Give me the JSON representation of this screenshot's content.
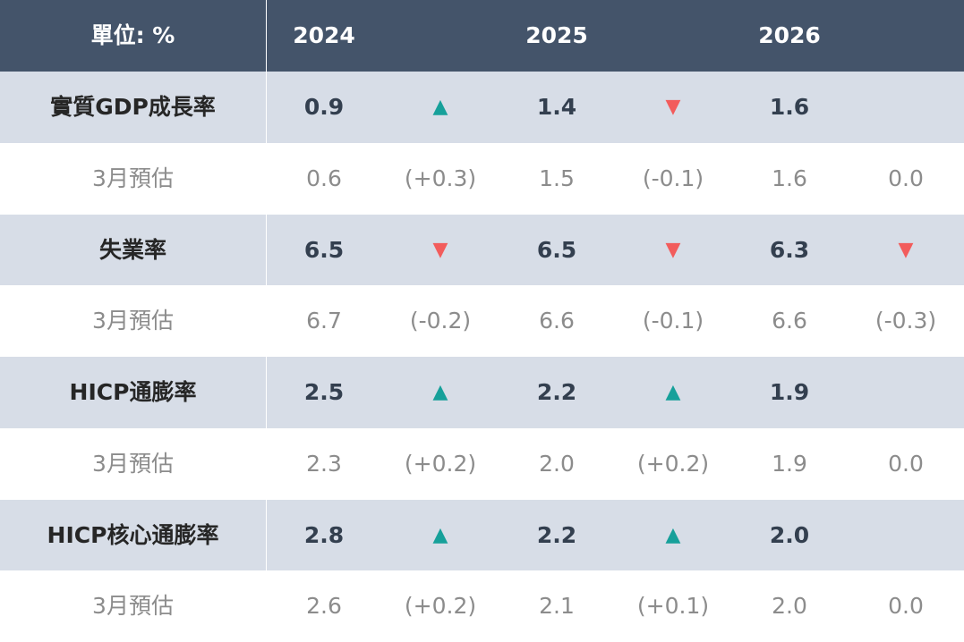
{
  "table": {
    "header": [
      "單位: %",
      "2024",
      null,
      "2025",
      null,
      "2026",
      null
    ],
    "arrow_colors": {
      "▲": "#16a09a",
      "▼": "#f25c5c"
    },
    "rows": [
      {
        "kind": "main",
        "cells": [
          "實質GDP成長率",
          "0.9",
          "▲",
          "1.4",
          "▼",
          "1.6",
          null
        ]
      },
      {
        "kind": "sub",
        "cells": [
          "3月預估",
          "0.6",
          "(+0.3)",
          "1.5",
          "(-0.1)",
          "1.6",
          "0.0"
        ]
      },
      {
        "kind": "main",
        "cells": [
          "失業率",
          "6.5",
          "▼",
          "6.5",
          "▼",
          "6.3",
          "▼"
        ]
      },
      {
        "kind": "sub",
        "cells": [
          "3月預估",
          "6.7",
          "(-0.2)",
          "6.6",
          "(-0.1)",
          "6.6",
          "(-0.3)"
        ]
      },
      {
        "kind": "main",
        "cells": [
          "HICP通膨率",
          "2.5",
          "▲",
          "2.2",
          "▲",
          "1.9",
          null
        ]
      },
      {
        "kind": "sub",
        "cells": [
          "3月預估",
          "2.3",
          "(+0.2)",
          "2.0",
          "(+0.2)",
          "1.9",
          "0.0"
        ]
      },
      {
        "kind": "main",
        "cells": [
          "HICP核心通膨率",
          "2.8",
          "▲",
          "2.2",
          "▲",
          "2.0",
          null
        ]
      },
      {
        "kind": "sub",
        "cells": [
          "3月預估",
          "2.6",
          "(+0.2)",
          "2.1",
          "(+0.1)",
          "2.0",
          "0.0"
        ]
      }
    ]
  }
}
